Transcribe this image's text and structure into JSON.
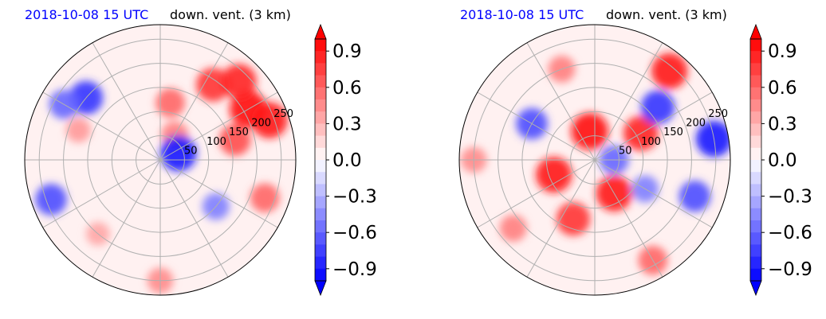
{
  "chart_data": [
    {
      "type": "heatmap",
      "projection": "polar",
      "title_left": "2018-10-08 15 UTC",
      "title_right": "down. vent. (3 km)",
      "radial_ticks": [
        50,
        100,
        150,
        200,
        250
      ],
      "radial_max": 280,
      "angular_gridlines_deg": [
        0,
        30,
        60,
        90,
        120,
        150,
        180,
        210,
        240,
        270,
        300,
        330
      ],
      "colorbar": {
        "range": [
          -1.0,
          1.0
        ],
        "ticks": [
          0.9,
          0.6,
          0.3,
          0.0,
          -0.3,
          -0.6,
          -0.9
        ],
        "tick_labels": [
          "0.9",
          "0.6",
          "0.3",
          "0.0",
          "−0.3",
          "−0.6",
          "−0.9"
        ],
        "extend": "both",
        "cmap": "bwr"
      },
      "features": [
        {
          "r": 210,
          "theta_deg": 30,
          "value": 0.95
        },
        {
          "r": 240,
          "theta_deg": 20,
          "value": 0.9
        },
        {
          "r": 190,
          "theta_deg": 55,
          "value": 0.8
        },
        {
          "r": 230,
          "theta_deg": 45,
          "value": 0.85
        },
        {
          "r": 160,
          "theta_deg": 15,
          "value": 0.7
        },
        {
          "r": 120,
          "theta_deg": 80,
          "value": 0.6
        },
        {
          "r": 60,
          "theta_deg": 60,
          "value": 0.5
        },
        {
          "r": 200,
          "theta_deg": 140,
          "value": -0.8
        },
        {
          "r": 230,
          "theta_deg": 150,
          "value": -0.6
        },
        {
          "r": 180,
          "theta_deg": 160,
          "value": 0.4
        },
        {
          "r": 40,
          "theta_deg": 20,
          "value": -0.9
        },
        {
          "r": 240,
          "theta_deg": 200,
          "value": -0.7
        },
        {
          "r": 200,
          "theta_deg": 230,
          "value": 0.35
        },
        {
          "r": 250,
          "theta_deg": 270,
          "value": 0.45
        },
        {
          "r": 150,
          "theta_deg": 320,
          "value": -0.5
        },
        {
          "r": 230,
          "theta_deg": 340,
          "value": 0.6
        }
      ]
    },
    {
      "type": "heatmap",
      "projection": "polar",
      "title_left": "2018-10-08 15 UTC",
      "title_right": "down. vent. (3 km)",
      "radial_ticks": [
        50,
        100,
        150,
        200,
        250
      ],
      "radial_max": 280,
      "angular_gridlines_deg": [
        0,
        30,
        60,
        90,
        120,
        150,
        180,
        210,
        240,
        270,
        300,
        330
      ],
      "colorbar": {
        "range": [
          -1.0,
          1.0
        ],
        "ticks": [
          0.9,
          0.6,
          0.3,
          0.0,
          -0.3,
          -0.6,
          -0.9
        ],
        "tick_labels": [
          "0.9",
          "0.6",
          "0.3",
          "0.0",
          "−0.3",
          "−0.6",
          "−0.9"
        ],
        "extend": "both",
        "cmap": "bwr"
      },
      "features": [
        {
          "r": 60,
          "theta_deg": 100,
          "value": 0.95
        },
        {
          "r": 90,
          "theta_deg": 200,
          "value": 0.9
        },
        {
          "r": 80,
          "theta_deg": 300,
          "value": 0.9
        },
        {
          "r": 110,
          "theta_deg": 30,
          "value": 0.85
        },
        {
          "r": 130,
          "theta_deg": 250,
          "value": 0.8
        },
        {
          "r": 150,
          "theta_deg": 150,
          "value": -0.7
        },
        {
          "r": 170,
          "theta_deg": 40,
          "value": -0.8
        },
        {
          "r": 240,
          "theta_deg": 50,
          "value": 0.9
        },
        {
          "r": 250,
          "theta_deg": 10,
          "value": -0.9
        },
        {
          "r": 220,
          "theta_deg": 340,
          "value": -0.7
        },
        {
          "r": 240,
          "theta_deg": 300,
          "value": 0.6
        },
        {
          "r": 220,
          "theta_deg": 220,
          "value": 0.5
        },
        {
          "r": 250,
          "theta_deg": 180,
          "value": 0.45
        },
        {
          "r": 200,
          "theta_deg": 110,
          "value": 0.5
        },
        {
          "r": 40,
          "theta_deg": 0,
          "value": -0.6
        },
        {
          "r": 120,
          "theta_deg": 330,
          "value": -0.5
        }
      ]
    }
  ]
}
